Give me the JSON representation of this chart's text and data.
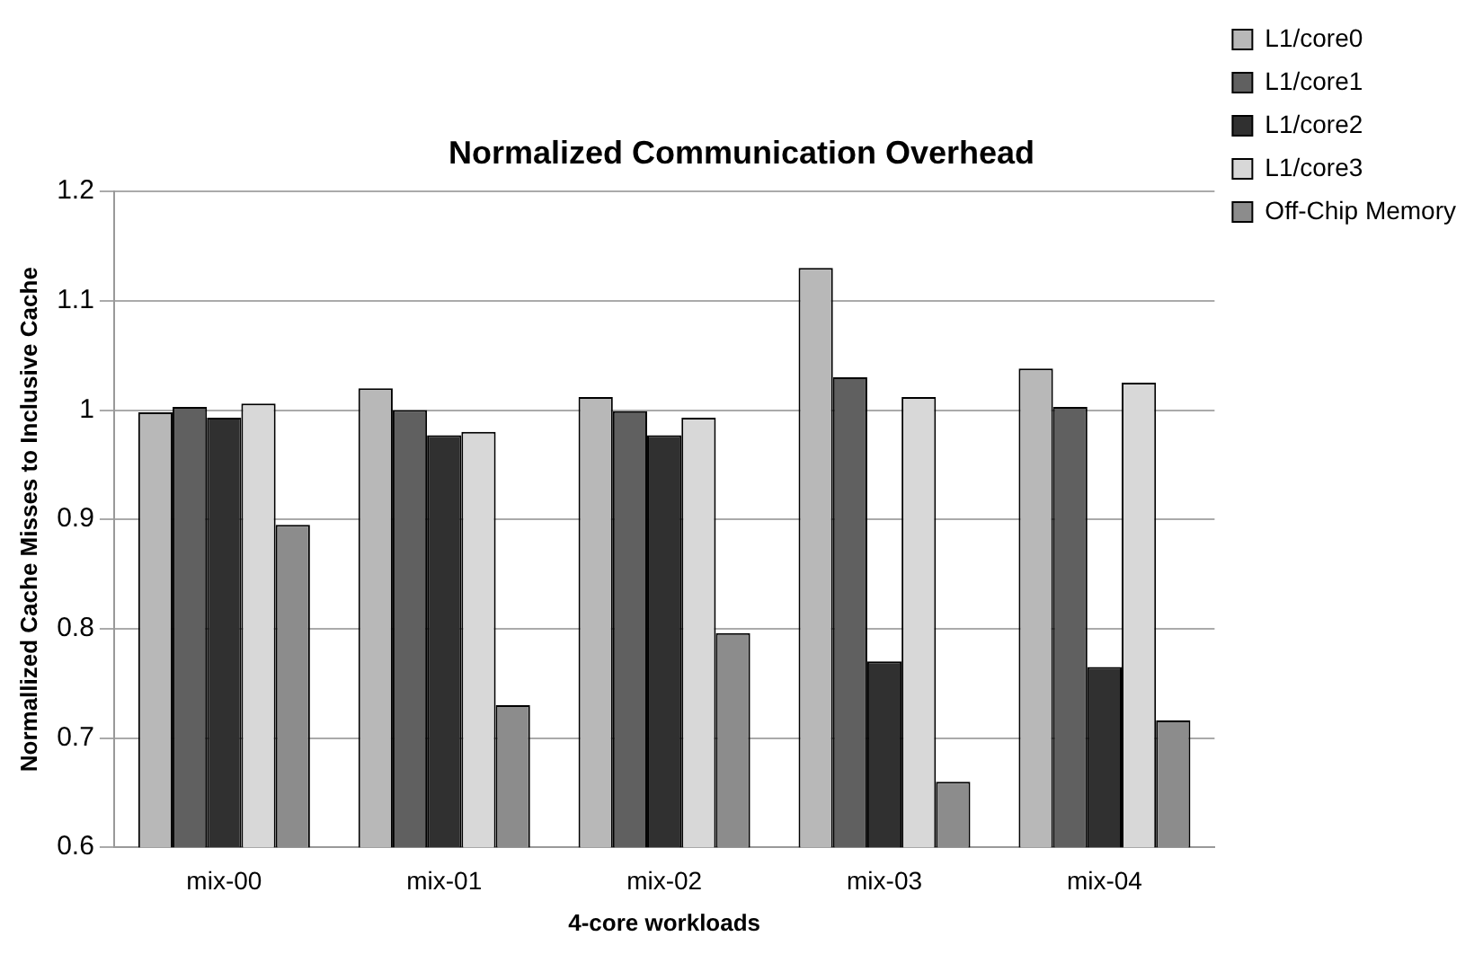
{
  "chart_data": {
    "type": "bar",
    "title": "Normalized Communication Overhead",
    "xlabel": "4-core workloads",
    "ylabel": "Normallized Cache Misses to Inclusive Cache",
    "categories": [
      "mix-00",
      "mix-01",
      "mix-02",
      "mix-03",
      "mix-04"
    ],
    "series": [
      {
        "name": "L1/core0",
        "color": "#b8b8b8",
        "values": [
          0.998,
          1.02,
          1.012,
          1.13,
          1.038
        ]
      },
      {
        "name": "L1/core1",
        "color": "#606060",
        "values": [
          1.003,
          1.0,
          0.999,
          1.03,
          1.003
        ]
      },
      {
        "name": "L1/core2",
        "color": "#303030",
        "values": [
          0.993,
          0.977,
          0.977,
          0.77,
          0.765
        ]
      },
      {
        "name": "L1/core3",
        "color": "#d8d8d8",
        "values": [
          1.006,
          0.98,
          0.993,
          1.012,
          1.025
        ]
      },
      {
        "name": "Off-Chip Memory",
        "color": "#8c8c8c",
        "values": [
          0.895,
          0.73,
          0.796,
          0.66,
          0.716
        ]
      }
    ],
    "ylim": [
      0.6,
      1.2
    ],
    "yticks": [
      0.6,
      0.7,
      0.8,
      0.9,
      1,
      1.1,
      1.2
    ],
    "grid": "y",
    "legend": "top right"
  }
}
